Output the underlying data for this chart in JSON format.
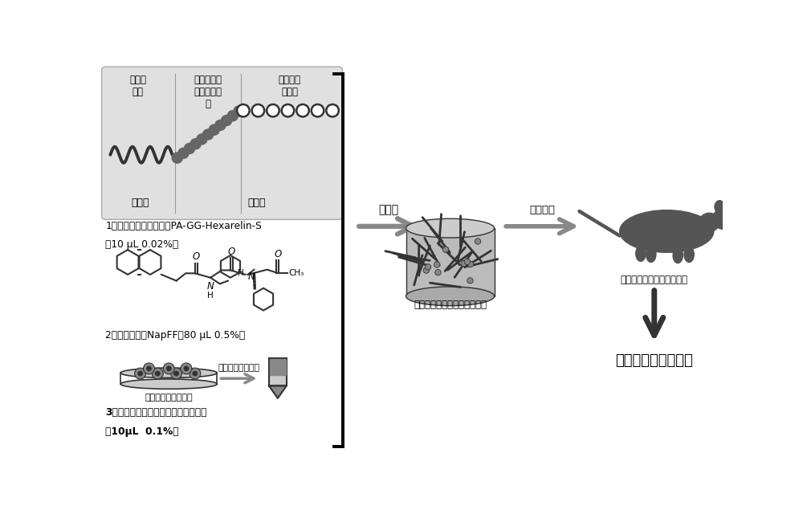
{
  "bg_color": "#ffffff",
  "fig_width": 10.0,
  "fig_height": 6.35,
  "panel1_sublabels": [
    "棕榈酸\n酰基",
    "基质金属蛋\n白酶降解序\n列",
    "生长激素\n释放肽"
  ],
  "panel1_bottom_labels": [
    "疏水链",
    "亲水链"
  ],
  "panel1_label_line1": "1，设计合成功能性多肽PA-GG-Hexarelin-S",
  "panel1_label_line2": "（10 μL 0.02%）",
  "panel2_label": "2，促成胶多肽NapFF（80 μL 0.5%）",
  "panel3_label1": "人脐带间充质干细胞",
  "panel3_label2": "从上清获得外泌体",
  "panel3_label3": "3，收集人脐带间充质干细胞的外泌体",
  "panel3_label4": "（10μL  0.1%）",
  "middle_label1": "自组装",
  "middle_label2": "包裹外泌体的纳米纤维水凝胶",
  "right_label1": "心肌注射",
  "right_label2": "移植到心梗后的大鼠心脏中",
  "right_label3": "提高心梗后心脏功能",
  "gray_light": "#cccccc",
  "gray_mid": "#888888",
  "gray_dark": "#333333",
  "black": "#000000",
  "white": "#ffffff",
  "panel1_bg": "#e0e0e0"
}
